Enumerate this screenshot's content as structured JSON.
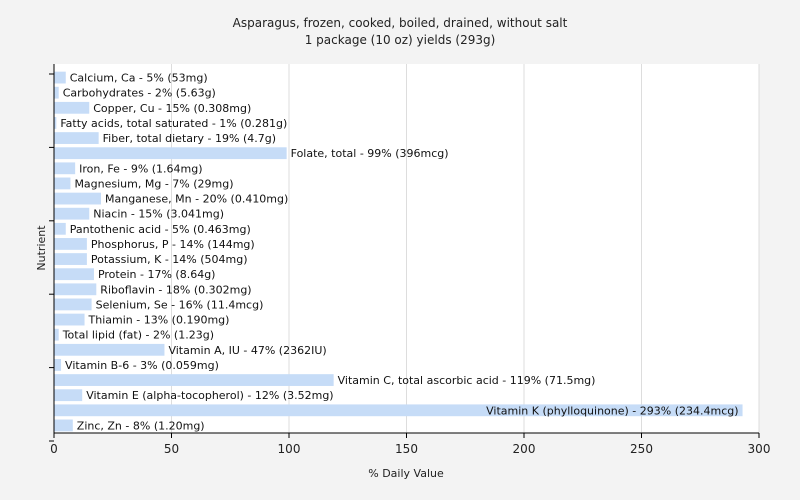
{
  "chart_data": {
    "type": "bar",
    "orientation": "horizontal",
    "title": "Asparagus, frozen, cooked, boiled, drained, without salt",
    "subtitle": "1 package (10 oz) yields (293g)",
    "xlabel": "% Daily Value",
    "ylabel": "Nutrient",
    "xlim": [
      0,
      300
    ],
    "xticks": [
      0,
      50,
      100,
      150,
      200,
      250,
      300
    ],
    "grid": true,
    "bar_color": "#c6dcf7",
    "bars": [
      {
        "name": "Calcium, Ca",
        "value": 5,
        "label": "Calcium, Ca - 5% (53mg)"
      },
      {
        "name": "Carbohydrates",
        "value": 2,
        "label": "Carbohydrates - 2% (5.63g)"
      },
      {
        "name": "Copper, Cu",
        "value": 15,
        "label": "Copper, Cu - 15% (0.308mg)"
      },
      {
        "name": "Fatty acids, total saturated",
        "value": 1,
        "label": "Fatty acids, total saturated - 1% (0.281g)"
      },
      {
        "name": "Fiber, total dietary",
        "value": 19,
        "label": "Fiber, total dietary - 19% (4.7g)"
      },
      {
        "name": "Folate, total",
        "value": 99,
        "label": "Folate, total - 99% (396mcg)"
      },
      {
        "name": "Iron, Fe",
        "value": 9,
        "label": "Iron, Fe - 9% (1.64mg)"
      },
      {
        "name": "Magnesium, Mg",
        "value": 7,
        "label": "Magnesium, Mg - 7% (29mg)"
      },
      {
        "name": "Manganese, Mn",
        "value": 20,
        "label": "Manganese, Mn - 20% (0.410mg)"
      },
      {
        "name": "Niacin",
        "value": 15,
        "label": "Niacin - 15% (3.041mg)"
      },
      {
        "name": "Pantothenic acid",
        "value": 5,
        "label": "Pantothenic acid - 5% (0.463mg)"
      },
      {
        "name": "Phosphorus, P",
        "value": 14,
        "label": "Phosphorus, P - 14% (144mg)"
      },
      {
        "name": "Potassium, K",
        "value": 14,
        "label": "Potassium, K - 14% (504mg)"
      },
      {
        "name": "Protein",
        "value": 17,
        "label": "Protein - 17% (8.64g)"
      },
      {
        "name": "Riboflavin",
        "value": 18,
        "label": "Riboflavin - 18% (0.302mg)"
      },
      {
        "name": "Selenium, Se",
        "value": 16,
        "label": "Selenium, Se - 16% (11.4mcg)"
      },
      {
        "name": "Thiamin",
        "value": 13,
        "label": "Thiamin - 13% (0.190mg)"
      },
      {
        "name": "Total lipid (fat)",
        "value": 2,
        "label": "Total lipid (fat) - 2% (1.23g)"
      },
      {
        "name": "Vitamin A, IU",
        "value": 47,
        "label": "Vitamin A, IU - 47% (2362IU)"
      },
      {
        "name": "Vitamin B-6",
        "value": 3,
        "label": "Vitamin B-6 - 3% (0.059mg)"
      },
      {
        "name": "Vitamin C, total ascorbic acid",
        "value": 119,
        "label": "Vitamin C, total ascorbic acid - 119% (71.5mg)"
      },
      {
        "name": "Vitamin E (alpha-tocopherol)",
        "value": 12,
        "label": "Vitamin E (alpha-tocopherol) - 12% (3.52mg)"
      },
      {
        "name": "Vitamin K (phylloquinone)",
        "value": 293,
        "label": "Vitamin K (phylloquinone) - 293% (234.4mcg)"
      },
      {
        "name": "Zinc, Zn",
        "value": 8,
        "label": "Zinc, Zn - 8% (1.20mg)"
      }
    ]
  }
}
